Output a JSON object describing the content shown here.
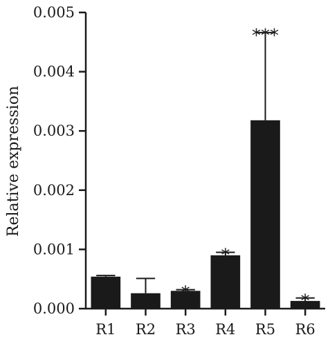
{
  "chart_data": {
    "type": "bar",
    "categories": [
      "R1",
      "R2",
      "R3",
      "R4",
      "R5",
      "R6"
    ],
    "values": [
      0.00054,
      0.00026,
      0.0003,
      0.0009,
      0.00318,
      0.00013
    ],
    "error_plus": [
      2e-05,
      0.00025,
      2e-05,
      5e-05,
      0.00148,
      5e-05
    ],
    "significance": [
      "",
      "",
      "*",
      "*",
      "***",
      "*"
    ],
    "ylabel": "Relative expression",
    "xlabel": "",
    "ylim": [
      0,
      0.005
    ],
    "yticks": [
      "0.000",
      "0.001",
      "0.002",
      "0.003",
      "0.004",
      "0.005"
    ],
    "bar_color": "#1a1a1a",
    "grid": false,
    "legend": "none"
  }
}
